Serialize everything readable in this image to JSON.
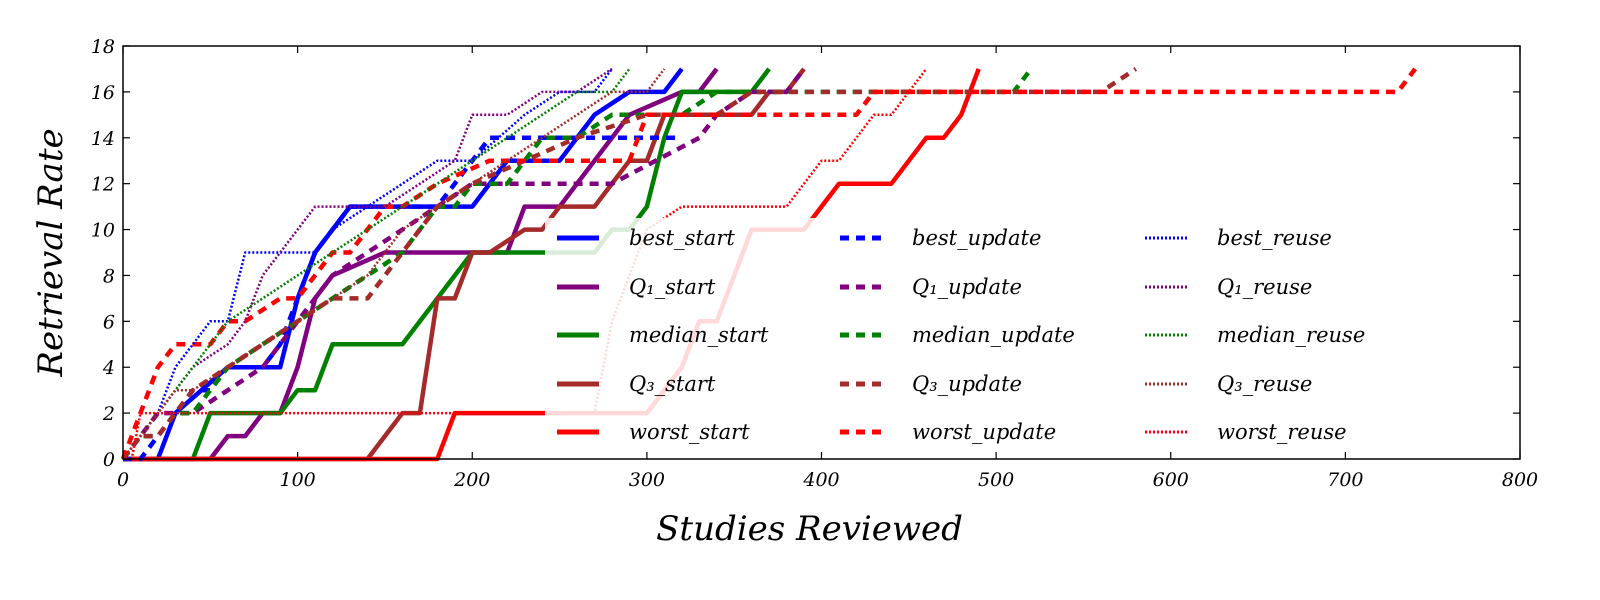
{
  "chart_data": {
    "type": "line",
    "title": "",
    "xlabel": "Studies Reviewed",
    "ylabel": "Retrieval Rate",
    "xlim": [
      0,
      800
    ],
    "ylim": [
      0,
      18
    ],
    "xticks": [
      0,
      100,
      200,
      300,
      400,
      500,
      600,
      700,
      800
    ],
    "yticks": [
      0,
      2,
      4,
      6,
      8,
      10,
      12,
      14,
      16,
      18
    ],
    "grid": false,
    "legend_position": "center-right",
    "series": [
      {
        "name": "best_start",
        "color": "#0000ff",
        "style": "solid",
        "x": [
          0,
          20,
          30,
          60,
          90,
          100,
          110,
          130,
          150,
          200,
          220,
          250,
          270,
          290,
          310,
          320
        ],
        "y": [
          0,
          0,
          2,
          4,
          4,
          7,
          9,
          11,
          11,
          11,
          13,
          13,
          15,
          16,
          16,
          17
        ]
      },
      {
        "name": "Q_1_start",
        "color": "#800080",
        "style": "solid",
        "x": [
          0,
          50,
          60,
          70,
          80,
          90,
          100,
          110,
          120,
          150,
          170,
          200,
          220,
          230,
          250,
          270,
          290,
          320,
          330,
          340
        ],
        "y": [
          0,
          0,
          1,
          1,
          2,
          2,
          4,
          7,
          8,
          9,
          9,
          9,
          9,
          11,
          11,
          13,
          15,
          16,
          16,
          17
        ]
      },
      {
        "name": "median_start",
        "color": "#008000",
        "style": "solid",
        "x": [
          0,
          40,
          50,
          80,
          90,
          100,
          110,
          120,
          150,
          160,
          200,
          220,
          240,
          270,
          280,
          290,
          300,
          310,
          320,
          340,
          360,
          370
        ],
        "y": [
          0,
          0,
          2,
          2,
          2,
          3,
          3,
          5,
          5,
          5,
          9,
          9,
          9,
          9,
          10,
          10,
          11,
          14,
          16,
          16,
          16,
          17
        ]
      },
      {
        "name": "Q_3_start",
        "color": "#a52a2a",
        "style": "solid",
        "x": [
          0,
          140,
          150,
          160,
          170,
          180,
          185,
          190,
          200,
          210,
          230,
          240,
          250,
          270,
          290,
          300,
          310,
          330,
          360,
          370,
          380,
          390
        ],
        "y": [
          0,
          0,
          1,
          2,
          2,
          7,
          7,
          7,
          9,
          9,
          10,
          10,
          11,
          11,
          13,
          13,
          15,
          15,
          15,
          16,
          16,
          17
        ]
      },
      {
        "name": "worst_start",
        "color": "#ff0000",
        "style": "solid",
        "x": [
          0,
          180,
          190,
          230,
          280,
          300,
          320,
          330,
          340,
          350,
          360,
          390,
          400,
          410,
          420,
          440,
          460,
          470,
          480,
          490
        ],
        "y": [
          0,
          0,
          2,
          2,
          2,
          2,
          4,
          6,
          6,
          8,
          10,
          10,
          11,
          12,
          12,
          12,
          14,
          14,
          15,
          17
        ]
      },
      {
        "name": "best_update",
        "color": "#0000ff",
        "style": "dashed",
        "x": [
          0,
          10,
          20,
          30,
          40,
          50,
          60,
          80,
          90,
          100,
          110,
          120,
          130,
          160,
          180,
          200,
          210,
          240,
          270,
          300,
          320
        ],
        "y": [
          0,
          0,
          1,
          2,
          3,
          3,
          4,
          4,
          5,
          7,
          9,
          10,
          11,
          11,
          11,
          13,
          14,
          14,
          14,
          14,
          14
        ]
      },
      {
        "name": "Q_1_update",
        "color": "#800080",
        "style": "dashed",
        "x": [
          0,
          10,
          20,
          40,
          60,
          80,
          100,
          120,
          140,
          160,
          180,
          200,
          240,
          280,
          330,
          340,
          360,
          380,
          390
        ],
        "y": [
          0,
          1,
          2,
          2,
          3,
          4,
          6,
          8,
          9,
          10,
          11,
          12,
          12,
          12,
          14,
          15,
          16,
          16,
          17
        ]
      },
      {
        "name": "median_update",
        "color": "#008000",
        "style": "dashed",
        "x": [
          0,
          10,
          20,
          30,
          40,
          50,
          60,
          80,
          100,
          120,
          140,
          160,
          180,
          190,
          200,
          220,
          240,
          260,
          280,
          320,
          340,
          380,
          390,
          510,
          520
        ],
        "y": [
          0,
          1,
          1,
          2,
          2,
          3,
          4,
          5,
          6,
          7,
          8,
          9,
          11,
          11,
          12,
          12,
          14,
          14,
          15,
          15,
          16,
          16,
          16,
          16,
          17
        ]
      },
      {
        "name": "Q_3_update",
        "color": "#a52a2a",
        "style": "dashed",
        "x": [
          0,
          10,
          20,
          30,
          40,
          60,
          80,
          100,
          120,
          140,
          160,
          180,
          200,
          230,
          260,
          300,
          340,
          360,
          380,
          400,
          500,
          560,
          580
        ],
        "y": [
          0,
          1,
          1,
          2,
          3,
          4,
          5,
          6,
          7,
          7,
          9,
          11,
          12,
          13,
          14,
          15,
          15,
          16,
          16,
          16,
          16,
          16,
          17
        ]
      },
      {
        "name": "worst_update",
        "color": "#ff0000",
        "style": "dashed",
        "x": [
          0,
          20,
          30,
          50,
          60,
          70,
          90,
          100,
          120,
          130,
          150,
          160,
          180,
          210,
          230,
          250,
          270,
          290,
          300,
          330,
          360,
          420,
          430,
          450,
          520,
          730,
          740
        ],
        "y": [
          0,
          4,
          5,
          5,
          6,
          6,
          7,
          7,
          9,
          9,
          11,
          11,
          12,
          13,
          13,
          13,
          13,
          13,
          15,
          15,
          15,
          15,
          16,
          16,
          16,
          16,
          17
        ]
      },
      {
        "name": "best_reuse",
        "color": "#0000ff",
        "style": "dotted",
        "x": [
          0,
          10,
          20,
          30,
          40,
          50,
          60,
          70,
          100,
          110,
          120,
          140,
          160,
          180,
          200,
          230,
          250,
          270,
          280
        ],
        "y": [
          0,
          1,
          2,
          4,
          5,
          6,
          6,
          9,
          9,
          9,
          10,
          11,
          12,
          13,
          13,
          15,
          16,
          16,
          17
        ]
      },
      {
        "name": "Q_1_reuse",
        "color": "#800080",
        "style": "dotted",
        "x": [
          0,
          10,
          20,
          30,
          40,
          60,
          70,
          80,
          90,
          100,
          110,
          120,
          150,
          170,
          190,
          200,
          220,
          240,
          260,
          280
        ],
        "y": [
          0,
          1,
          2,
          3,
          4,
          5,
          6,
          8,
          9,
          10,
          11,
          11,
          11,
          12,
          13,
          15,
          15,
          16,
          16,
          17
        ]
      },
      {
        "name": "median_reuse",
        "color": "#008000",
        "style": "dotted",
        "x": [
          0,
          10,
          20,
          30,
          40,
          50,
          60,
          80,
          100,
          120,
          140,
          160,
          180,
          200,
          220,
          240,
          260,
          280,
          290
        ],
        "y": [
          0,
          1,
          2,
          3,
          4,
          5,
          6,
          7,
          8,
          9,
          10,
          11,
          12,
          13,
          14,
          15,
          16,
          16,
          17
        ]
      },
      {
        "name": "Q_3_reuse",
        "color": "#a52a2a",
        "style": "dotted",
        "x": [
          0,
          10,
          20,
          30,
          40,
          60,
          80,
          100,
          120,
          140,
          160,
          180,
          200,
          220,
          240,
          260,
          280,
          300,
          310
        ],
        "y": [
          0,
          1,
          2,
          3,
          3,
          4,
          5,
          6,
          7,
          8,
          10,
          11,
          12,
          13,
          14,
          15,
          16,
          16,
          17
        ]
      },
      {
        "name": "worst_reuse",
        "color": "#ff0000",
        "style": "dotted",
        "x": [
          0,
          5,
          10,
          30,
          60,
          100,
          150,
          200,
          250,
          270,
          280,
          300,
          320,
          330,
          340,
          380,
          400,
          410,
          430,
          440,
          460
        ],
        "y": [
          0,
          0,
          2,
          2,
          2,
          2,
          2,
          2,
          2,
          2,
          6,
          10,
          11,
          11,
          11,
          11,
          13,
          13,
          15,
          15,
          17
        ]
      }
    ],
    "legend": {
      "columns": [
        [
          {
            "label": "best_start",
            "color": "#0000ff",
            "style": "solid"
          },
          {
            "label": "Q₁_start",
            "color": "#800080",
            "style": "solid"
          },
          {
            "label": "median_start",
            "color": "#008000",
            "style": "solid"
          },
          {
            "label": "Q₃_start",
            "color": "#a52a2a",
            "style": "solid"
          },
          {
            "label": "worst_start",
            "color": "#ff0000",
            "style": "solid"
          }
        ],
        [
          {
            "label": "best_update",
            "color": "#0000ff",
            "style": "dashed"
          },
          {
            "label": "Q₁_update",
            "color": "#800080",
            "style": "dashed"
          },
          {
            "label": "median_update",
            "color": "#008000",
            "style": "dashed"
          },
          {
            "label": "Q₃_update",
            "color": "#a52a2a",
            "style": "dashed"
          },
          {
            "label": "worst_update",
            "color": "#ff0000",
            "style": "dashed"
          }
        ],
        [
          {
            "label": "best_reuse",
            "color": "#0000ff",
            "style": "dotted"
          },
          {
            "label": "Q₁_reuse",
            "color": "#800080",
            "style": "dotted"
          },
          {
            "label": "median_reuse",
            "color": "#008000",
            "style": "dotted"
          },
          {
            "label": "Q₃_reuse",
            "color": "#a52a2a",
            "style": "dotted"
          },
          {
            "label": "worst_reuse",
            "color": "#ff0000",
            "style": "dotted"
          }
        ]
      ]
    }
  }
}
